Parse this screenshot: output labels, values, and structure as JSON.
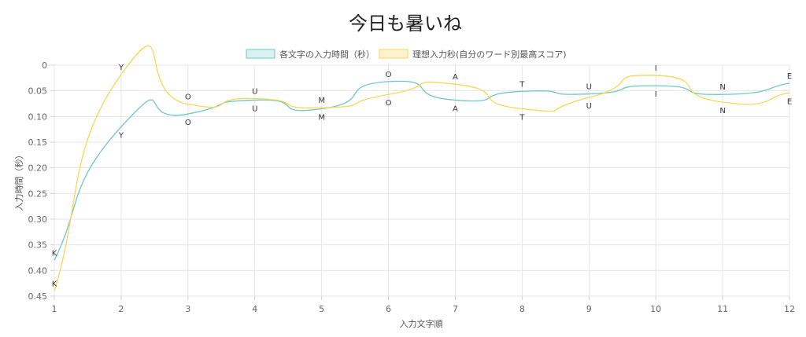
{
  "chart_data": {
    "type": "line",
    "title": "今日も暑いね",
    "xlabel": "入力文字順",
    "ylabel": "入力時間（秒）",
    "x": [
      1,
      2,
      3,
      4,
      5,
      6,
      7,
      8,
      9,
      10,
      11,
      12
    ],
    "ylim": [
      0,
      0.45
    ],
    "y_reversed": true,
    "y_ticks": [
      "0",
      "0.05",
      "0.10",
      "0.15",
      "0.20",
      "0.25",
      "0.30",
      "0.35",
      "0.40",
      "0.45"
    ],
    "x_ticks": [
      "1",
      "2",
      "3",
      "4",
      "5",
      "6",
      "7",
      "8",
      "9",
      "10",
      "11",
      "12"
    ],
    "grid": true,
    "legend_position": "top",
    "series": [
      {
        "name": "各文字の入力時間（秒）",
        "color": "#72c7c7",
        "fill": "#d9f1f1",
        "values": [
          0.38,
          0.12,
          0.095,
          0.068,
          0.085,
          0.032,
          0.068,
          0.051,
          0.056,
          0.04,
          0.057,
          0.035
        ],
        "labels": [
          "K",
          "Y",
          "O",
          "U",
          "M",
          "O",
          "A",
          "T",
          "U",
          "I",
          "N",
          "E"
        ]
      },
      {
        "name": "理想入力秒(自分のワード別最高スコア)",
        "color": "#f9d65a",
        "fill": "#fdf3cf",
        "values": [
          0.44,
          0.018,
          0.076,
          0.065,
          0.083,
          0.057,
          0.037,
          0.085,
          0.063,
          0.02,
          0.072,
          0.054
        ],
        "labels": [
          "K",
          "Y",
          "O",
          "U",
          "M",
          "O",
          "A",
          "T",
          "U",
          "I",
          "N",
          "E"
        ]
      }
    ]
  }
}
